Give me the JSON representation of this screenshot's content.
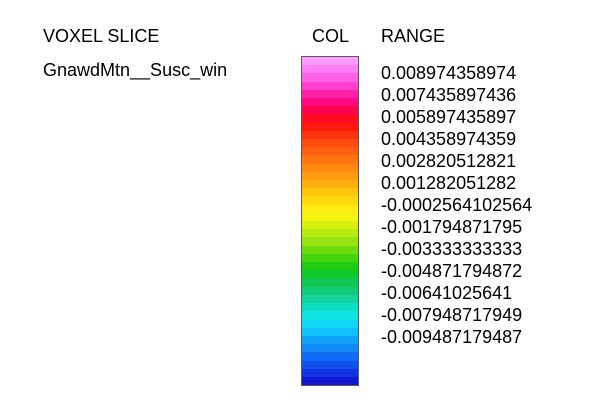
{
  "headers": {
    "voxel_slice": "VOXEL SLICE",
    "col": "COL",
    "range": "RANGE"
  },
  "slice_name": "GnawdMtn__Susc_win",
  "range_values": [
    "0.008974358974",
    "0.007435897436",
    "0.005897435897",
    "0.004358974359",
    "0.002820512821",
    "0.001282051282",
    "-0.0002564102564",
    "-0.001794871795",
    "-0.003333333333",
    "-0.004871794872",
    "-0.00641025641",
    "-0.007948717949",
    "-0.009487179487"
  ],
  "colors": [
    "#ff9cff",
    "#ff80f4",
    "#ff60e4",
    "#ff40cc",
    "#ff20a8",
    "#ff0a80",
    "#ff0050",
    "#ff0a20",
    "#ff1a10",
    "#ff3210",
    "#ff4a10",
    "#ff6010",
    "#ff7410",
    "#ff8810",
    "#ff9c10",
    "#ffb010",
    "#ffc410",
    "#ffd810",
    "#ffec10",
    "#f4f410",
    "#d8f010",
    "#b8ec10",
    "#98e410",
    "#70dc10",
    "#44d410",
    "#20cc10",
    "#10c828",
    "#10c850",
    "#10cc78",
    "#10d49c",
    "#10dcc0",
    "#10e4e0",
    "#10d8f4",
    "#10c0f8",
    "#10a4f8",
    "#1088f8",
    "#106cf4",
    "#1050ec",
    "#1034e0",
    "#1018d0"
  ]
}
